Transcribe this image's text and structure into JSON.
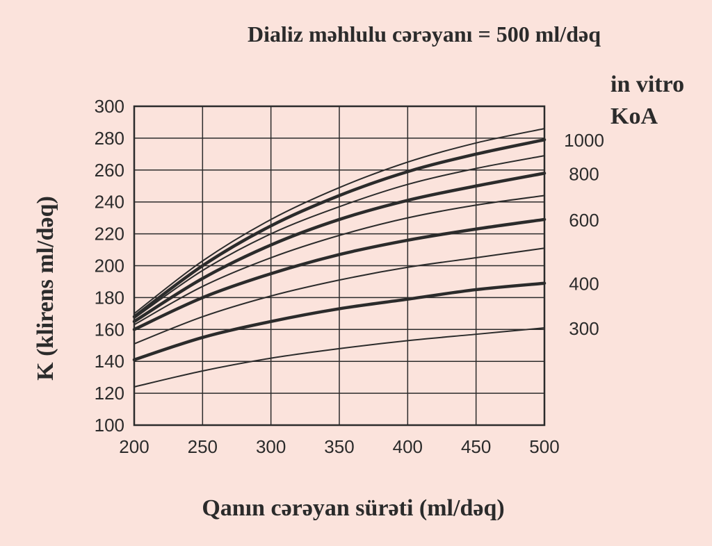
{
  "chart_data": {
    "type": "line",
    "title": "Dializ məhlulu cərəyanı = 500 ml/dəq",
    "xlabel": "Qanın cərəyan sürəti (ml/dəq)",
    "ylabel": "K (klirens ml/dəq)",
    "legend_title": [
      "in vitro",
      "KoA"
    ],
    "xlim": [
      200,
      500
    ],
    "ylim": [
      100,
      300
    ],
    "x_ticks": [
      "200",
      "250",
      "300",
      "350",
      "400",
      "450",
      "500"
    ],
    "y_ticks": [
      "100",
      "120",
      "140",
      "160",
      "180",
      "200",
      "220",
      "240",
      "260",
      "280",
      "300"
    ],
    "grid": true,
    "x": [
      200,
      250,
      300,
      350,
      400,
      450,
      500
    ],
    "series": [
      {
        "values": [
          124,
          134,
          142,
          148,
          153,
          157,
          161
        ],
        "bold": false
      },
      {
        "name": "300",
        "values": [
          141,
          155,
          165,
          173,
          179,
          185,
          189
        ],
        "bold": true
      },
      {
        "values": [
          151,
          168,
          181,
          191,
          199,
          205,
          211
        ],
        "bold": false
      },
      {
        "name": "400",
        "values": [
          160,
          180,
          195,
          207,
          216,
          223,
          229
        ],
        "bold": true
      },
      {
        "values": [
          163,
          187,
          205,
          219,
          230,
          238,
          244
        ],
        "bold": false
      },
      {
        "name": "600",
        "values": [
          165,
          192,
          213,
          229,
          241,
          250,
          258
        ],
        "bold": true
      },
      {
        "values": [
          167,
          197,
          220,
          237,
          251,
          261,
          269
        ],
        "bold": false
      },
      {
        "name": "800",
        "values": [
          168,
          200,
          225,
          244,
          259,
          270,
          279
        ],
        "bold": true
      },
      {
        "name": "1000",
        "values": [
          170,
          203,
          229,
          249,
          265,
          277,
          286
        ],
        "bold": false
      }
    ],
    "right_labels": [
      {
        "text": "1000",
        "y": 279
      },
      {
        "text": "800",
        "y": 258
      },
      {
        "text": "600",
        "y": 229
      },
      {
        "text": "400",
        "y": 189
      },
      {
        "text": "300",
        "y": 161
      }
    ]
  }
}
